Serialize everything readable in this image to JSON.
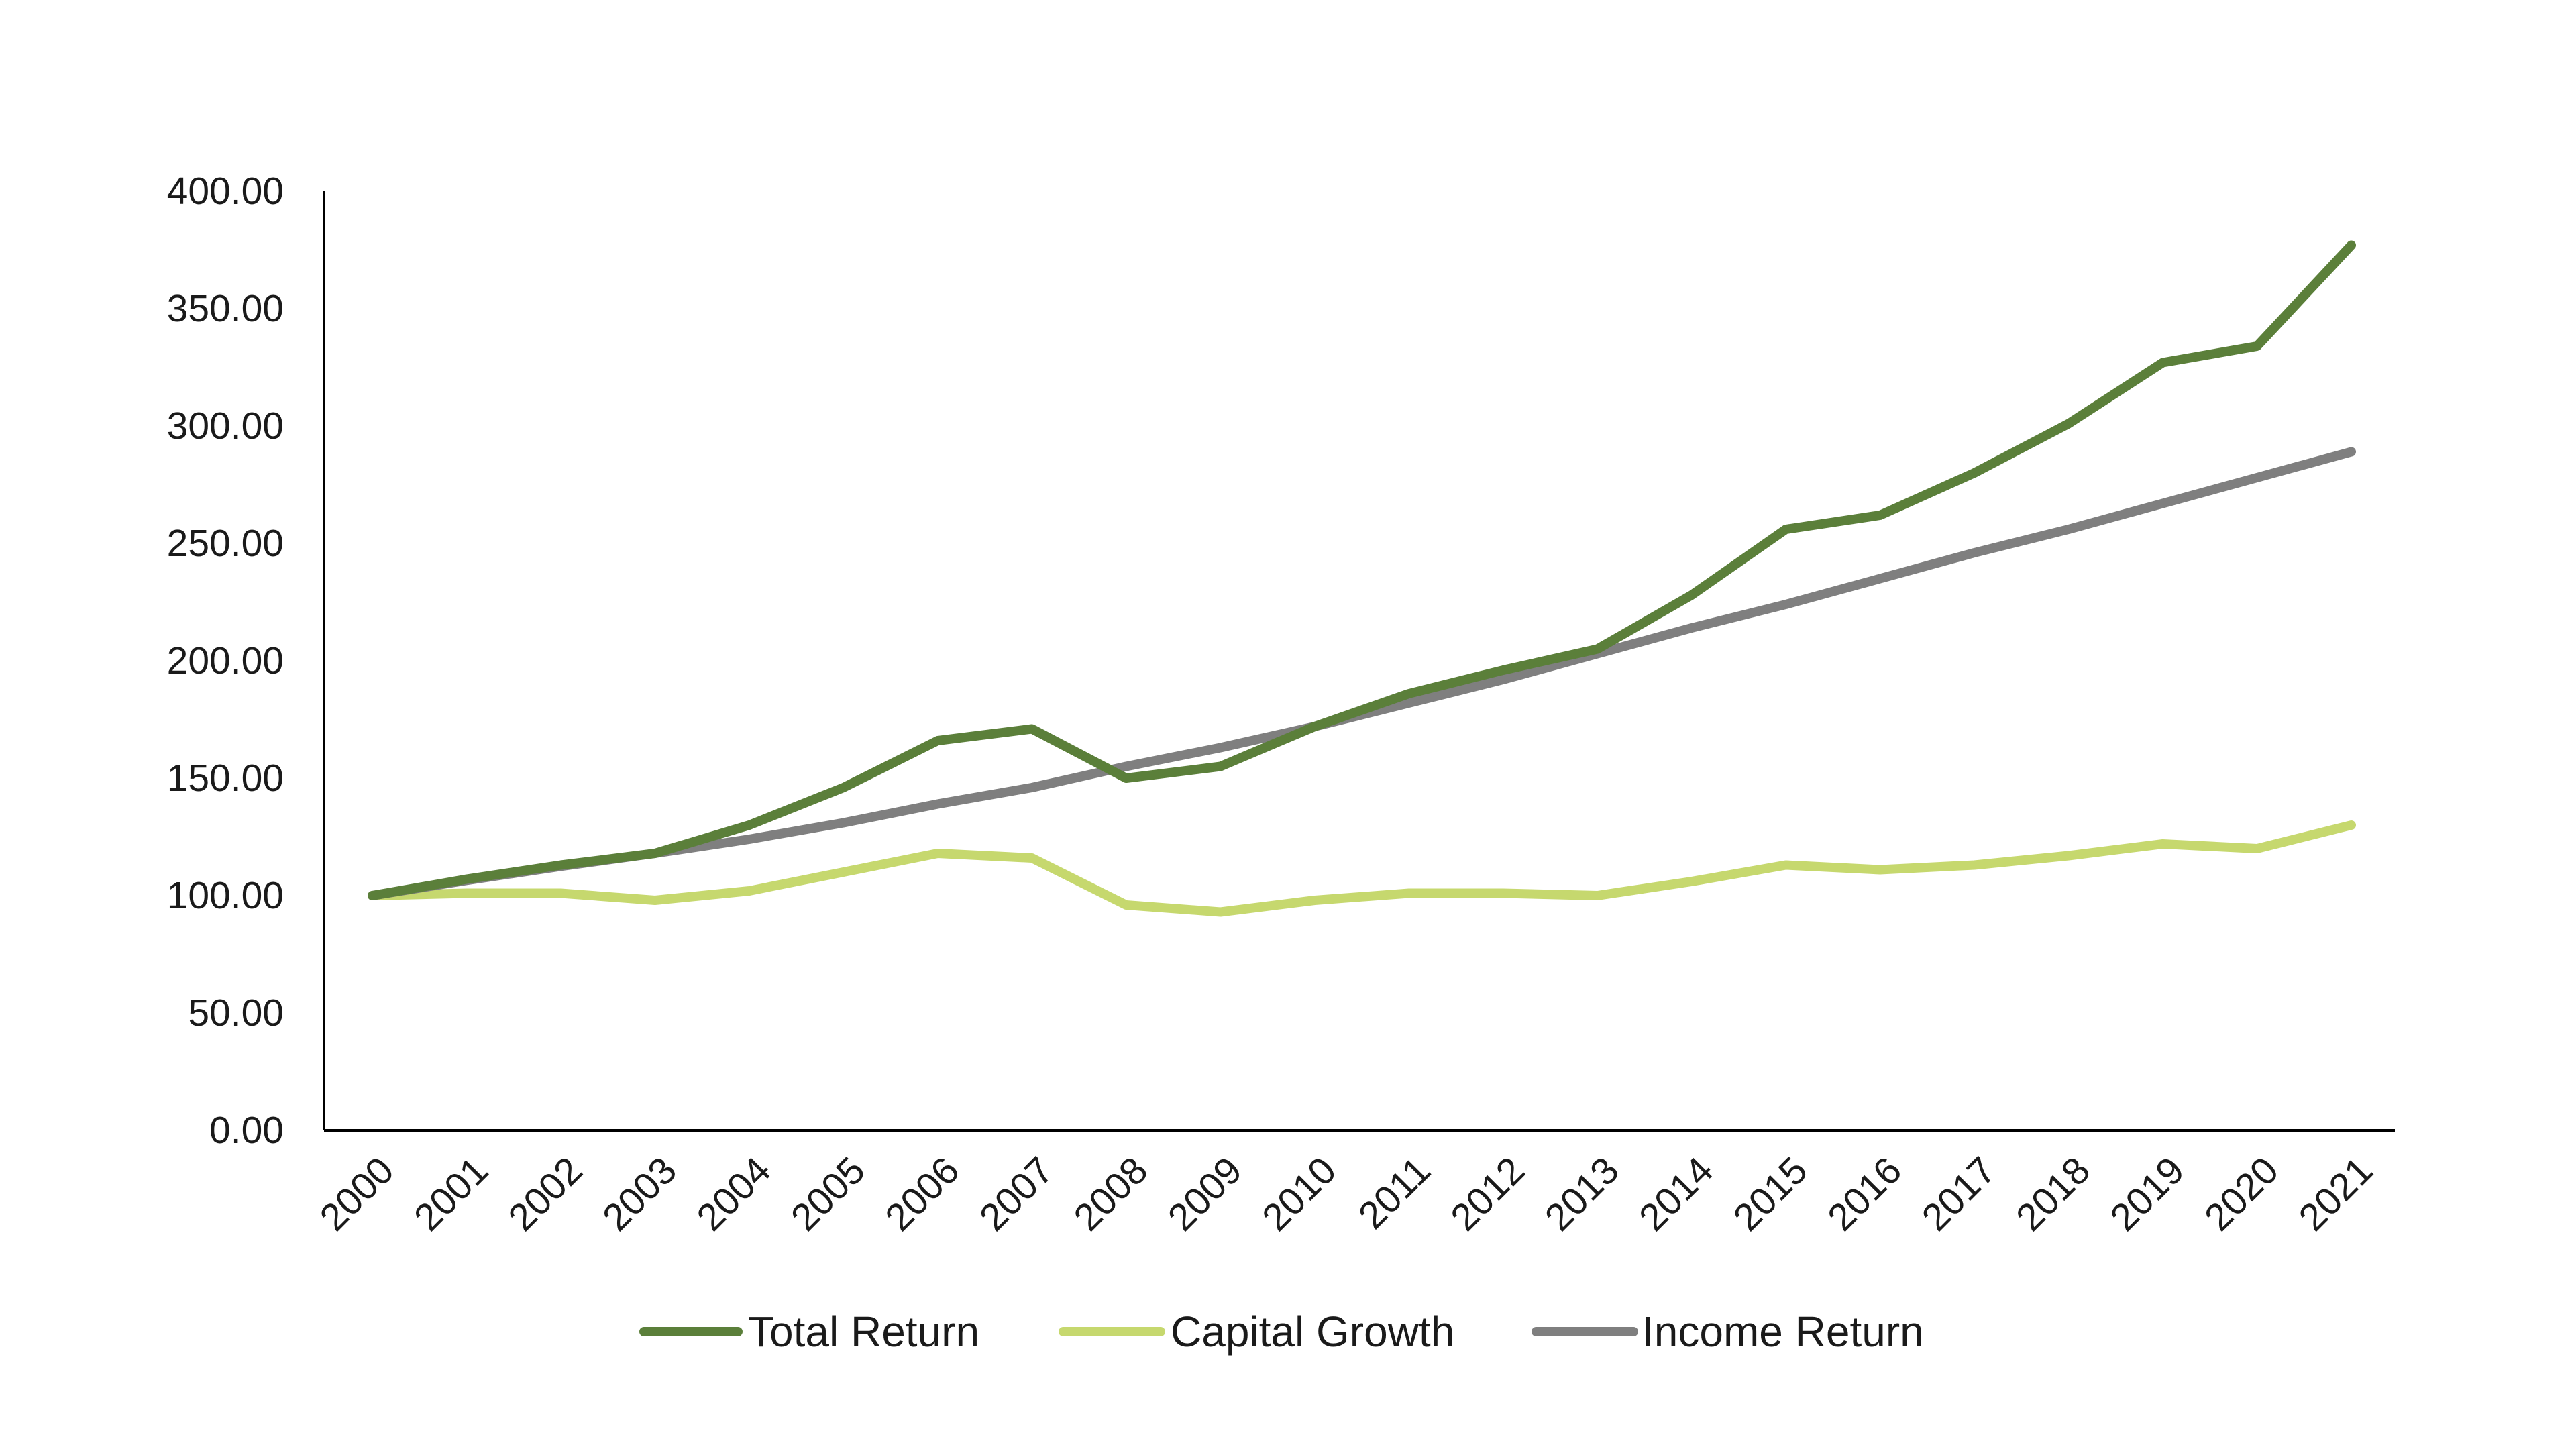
{
  "chart_data": {
    "type": "line",
    "title": "",
    "xlabel": "",
    "ylabel": "",
    "x": [
      "2000",
      "2001",
      "2002",
      "2003",
      "2004",
      "2005",
      "2006",
      "2007",
      "2008",
      "2009",
      "2010",
      "2011",
      "2012",
      "2013",
      "2014",
      "2015",
      "2016",
      "2017",
      "2018",
      "2019",
      "2020",
      "2021"
    ],
    "ylim": [
      0,
      400
    ],
    "yticks": [
      "0.00",
      "50.00",
      "100.00",
      "150.00",
      "200.00",
      "250.00",
      "300.00",
      "350.00",
      "400.00"
    ],
    "grid": false,
    "legend_position": "bottom",
    "series": [
      {
        "name": "Total Return",
        "color": "#5b7f3a",
        "values": [
          100,
          107,
          113,
          118,
          130,
          146,
          166,
          171,
          150,
          155,
          172,
          186,
          196,
          205,
          228,
          256,
          262,
          280,
          301,
          327,
          334,
          377
        ]
      },
      {
        "name": "Capital Growth",
        "color": "#c6d86e",
        "values": [
          100,
          101,
          101,
          98,
          102,
          110,
          118,
          116,
          96,
          93,
          98,
          101,
          101,
          100,
          106,
          113,
          111,
          113,
          117,
          122,
          120,
          130
        ]
      },
      {
        "name": "Income Return",
        "color": "#7f7f7f",
        "values": [
          100,
          106.5,
          112.5,
          118,
          124,
          131,
          139,
          146,
          155,
          163,
          172,
          182,
          192,
          203,
          214,
          224,
          235,
          246,
          256,
          267,
          278,
          289
        ]
      }
    ]
  }
}
